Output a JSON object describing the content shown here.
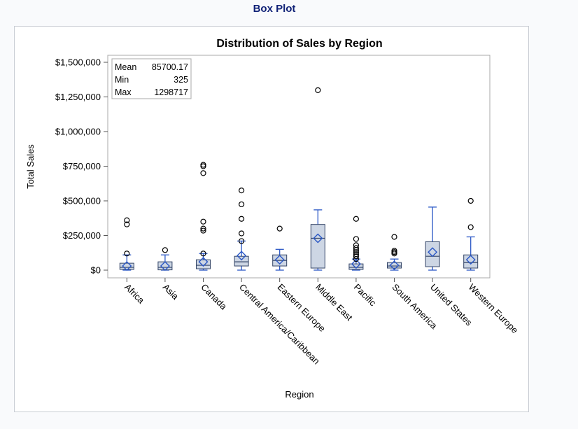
{
  "page": {
    "heading": "Box Plot"
  },
  "chart_data": {
    "type": "box",
    "title": "Distribution of Sales by Region",
    "xlabel": "Region",
    "ylabel": "Total Sales",
    "ylim": [
      -30000,
      1550000
    ],
    "yticks": [
      {
        "value": 0,
        "label": "$0"
      },
      {
        "value": 250000,
        "label": "$250,000"
      },
      {
        "value": 500000,
        "label": "$500,000"
      },
      {
        "value": 750000,
        "label": "$750,000"
      },
      {
        "value": 1000000,
        "label": "$1,000,000"
      },
      {
        "value": 1250000,
        "label": "$1,250,000"
      },
      {
        "value": 1500000,
        "label": "$1,500,000"
      }
    ],
    "grid": false,
    "colors": {
      "box_fill": "#cdd6e4",
      "box_edge": "#334466",
      "whisker": "#2b58c6",
      "mean_marker": "#2b58c6",
      "outlier": "#000000"
    },
    "inset_stats": [
      {
        "label": "Mean",
        "value": "85700.17"
      },
      {
        "label": "Min",
        "value": "325"
      },
      {
        "label": "Max",
        "value": "1298717"
      }
    ],
    "categories": [
      "Africa",
      "Asia",
      "Canada",
      "Central America/Caribbean",
      "Eastern Europe",
      "Middle East",
      "Pacific",
      "South America",
      "United States",
      "Western Europe"
    ],
    "boxes": [
      {
        "category": "Africa",
        "q1": 5000,
        "median": 20000,
        "q3": 50000,
        "mean": 30000,
        "whisker_low": 0,
        "whisker_high": 110000,
        "outliers": [
          120000,
          330000,
          360000
        ]
      },
      {
        "category": "Asia",
        "q1": 2000,
        "median": 20000,
        "q3": 60000,
        "mean": 30000,
        "whisker_low": 0,
        "whisker_high": 110000,
        "outliers": [
          145000
        ]
      },
      {
        "category": "Canada",
        "q1": 10000,
        "median": 35000,
        "q3": 75000,
        "mean": 60000,
        "whisker_low": 0,
        "whisker_high": 120000,
        "outliers": [
          120000,
          285000,
          300000,
          350000,
          700000,
          750000,
          760000
        ]
      },
      {
        "category": "Central America/Caribbean",
        "q1": 30000,
        "median": 60000,
        "q3": 100000,
        "mean": 105000,
        "whisker_low": 0,
        "whisker_high": 210000,
        "outliers": [
          210000,
          265000,
          370000,
          475000,
          575000
        ]
      },
      {
        "category": "Eastern Europe",
        "q1": 30000,
        "median": 70000,
        "q3": 110000,
        "mean": 75000,
        "whisker_low": 0,
        "whisker_high": 150000,
        "outliers": [
          300000
        ]
      },
      {
        "category": "Middle East",
        "q1": 15000,
        "median": 230000,
        "q3": 330000,
        "mean": 230000,
        "whisker_low": 0,
        "whisker_high": 435000,
        "outliers": [
          1298717
        ]
      },
      {
        "category": "Pacific",
        "q1": 5000,
        "median": 20000,
        "q3": 45000,
        "mean": 45000,
        "whisker_low": 0,
        "whisker_high": 80000,
        "outliers": [
          80000,
          100000,
          115000,
          130000,
          145000,
          160000,
          180000,
          225000,
          370000
        ]
      },
      {
        "category": "South America",
        "q1": 15000,
        "median": 30000,
        "q3": 55000,
        "mean": 35000,
        "whisker_low": 0,
        "whisker_high": 80000,
        "outliers": [
          120000,
          130000,
          140000,
          240000
        ]
      },
      {
        "category": "United States",
        "q1": 25000,
        "median": 100000,
        "q3": 205000,
        "mean": 130000,
        "whisker_low": 0,
        "whisker_high": 455000,
        "outliers": []
      },
      {
        "category": "Western Europe",
        "q1": 15000,
        "median": 55000,
        "q3": 110000,
        "mean": 75000,
        "whisker_low": 0,
        "whisker_high": 240000,
        "outliers": [
          310000,
          500000
        ]
      }
    ]
  }
}
